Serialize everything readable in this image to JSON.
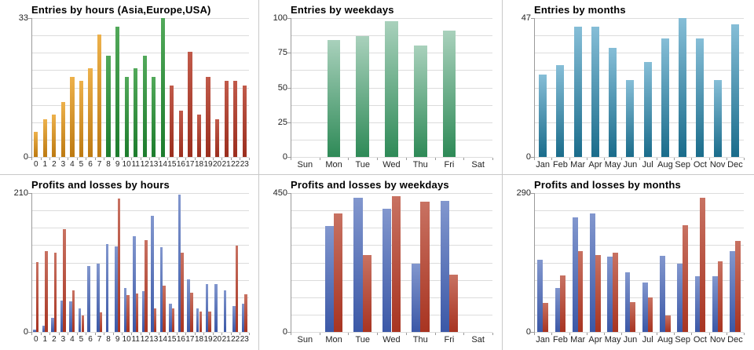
{
  "page": {
    "background": "#ffffff",
    "panel_border_color": "#c8c8c8",
    "grid_color": "#dcdcdc",
    "axis_color": "#9a9a9a",
    "label_color": "#222222",
    "title_color": "#000000"
  },
  "palettes": {
    "orange": [
      "#edb14b",
      "#bd7a12"
    ],
    "green": [
      "#52a95a",
      "#1d7c2d"
    ],
    "rust": [
      "#c15a4a",
      "#9b2e1e"
    ],
    "mint": [
      "#a9d1bc",
      "#2e8a57"
    ],
    "teal": [
      "#86bed7",
      "#1a6c8b"
    ],
    "blue": [
      "#8297ce",
      "#3b58a7"
    ],
    "red": [
      "#c87262",
      "#a83421"
    ]
  },
  "chart_data": [
    {
      "id": "entries-by-hours",
      "type": "bar",
      "title": "Entries by hours (Asia,Europe,USA)",
      "ylim": [
        0,
        33
      ],
      "grid_divisions": 8,
      "legend_position": "none",
      "y_ticks": [
        {
          "value": 33,
          "label": "33"
        },
        {
          "value": 0,
          "label": "0"
        }
      ],
      "categories": [
        "0",
        "1",
        "2",
        "3",
        "4",
        "5",
        "6",
        "7",
        "8",
        "9",
        "10",
        "11",
        "12",
        "13",
        "14",
        "15",
        "16",
        "17",
        "18",
        "19",
        "20",
        "21",
        "22",
        "23"
      ],
      "series": [
        {
          "name": "entries",
          "values": [
            6,
            9,
            10,
            13,
            19,
            18,
            21,
            29,
            24,
            31,
            19,
            21,
            24,
            19,
            33,
            17,
            11,
            25,
            10,
            19,
            9,
            18,
            18,
            17
          ]
        }
      ],
      "bar_palettes": [
        "orange",
        "orange",
        "orange",
        "orange",
        "orange",
        "orange",
        "orange",
        "orange",
        "green",
        "green",
        "green",
        "green",
        "green",
        "green",
        "green",
        "rust",
        "rust",
        "rust",
        "rust",
        "rust",
        "rust",
        "rust",
        "rust",
        "rust"
      ],
      "region_groups": [
        {
          "label": "Asia",
          "palette": "orange",
          "hours": "0-7"
        },
        {
          "label": "Europe",
          "palette": "green",
          "hours": "8-14"
        },
        {
          "label": "USA",
          "palette": "rust",
          "hours": "15-23"
        }
      ]
    },
    {
      "id": "entries-by-weekdays",
      "type": "bar",
      "title": "Entries by weekdays",
      "ylim": [
        0,
        100
      ],
      "grid_divisions": 8,
      "legend_position": "none",
      "y_ticks": [
        {
          "value": 100,
          "label": "100"
        },
        {
          "value": 75,
          "label": "75"
        },
        {
          "value": 50,
          "label": "50"
        },
        {
          "value": 25,
          "label": "25"
        },
        {
          "value": 0,
          "label": "0"
        }
      ],
      "categories": [
        "Sun",
        "Mon",
        "Tue",
        "Wed",
        "Thu",
        "Fri",
        "Sat"
      ],
      "series": [
        {
          "name": "entries",
          "palette": "mint",
          "values": [
            0,
            84,
            87,
            98,
            80,
            91,
            0
          ]
        }
      ]
    },
    {
      "id": "entries-by-months",
      "type": "bar",
      "title": "Entries by months",
      "ylim": [
        0,
        47
      ],
      "grid_divisions": 8,
      "legend_position": "none",
      "y_ticks": [
        {
          "value": 47,
          "label": "47"
        },
        {
          "value": 0,
          "label": "0"
        }
      ],
      "categories": [
        "Jan",
        "Feb",
        "Mar",
        "Apr",
        "May",
        "Jun",
        "Jul",
        "Aug",
        "Sep",
        "Oct",
        "Nov",
        "Dec"
      ],
      "series": [
        {
          "name": "entries",
          "palette": "teal",
          "values": [
            28,
            31,
            44,
            44,
            37,
            26,
            32,
            40,
            47,
            40,
            26,
            45
          ]
        }
      ]
    },
    {
      "id": "profits-losses-by-hours",
      "type": "bar",
      "title": "Profits and losses by hours",
      "ylim": [
        0,
        210
      ],
      "grid_divisions": 8,
      "legend_position": "none",
      "y_ticks": [
        {
          "value": 210,
          "label": "210"
        },
        {
          "value": 0,
          "label": "0"
        }
      ],
      "categories": [
        "0",
        "1",
        "2",
        "3",
        "4",
        "5",
        "6",
        "7",
        "8",
        "9",
        "10",
        "11",
        "12",
        "13",
        "14",
        "15",
        "16",
        "17",
        "18",
        "19",
        "20",
        "21",
        "22",
        "23"
      ],
      "series": [
        {
          "name": "profits",
          "palette": "blue",
          "values": [
            4,
            10,
            21,
            47,
            46,
            36,
            100,
            103,
            133,
            129,
            66,
            145,
            62,
            176,
            128,
            43,
            208,
            79,
            36,
            72,
            72,
            63,
            39,
            43
          ]
        },
        {
          "name": "losses",
          "palette": "red",
          "values": [
            106,
            122,
            120,
            155,
            63,
            25,
            0,
            30,
            0,
            202,
            56,
            58,
            139,
            35,
            70,
            35,
            120,
            59,
            31,
            31,
            0,
            0,
            131,
            57
          ]
        }
      ]
    },
    {
      "id": "profits-losses-by-weekdays",
      "type": "bar",
      "title": "Profits and losses by weekdays",
      "ylim": [
        0,
        450
      ],
      "grid_divisions": 8,
      "legend_position": "none",
      "y_ticks": [
        {
          "value": 450,
          "label": "450"
        },
        {
          "value": 0,
          "label": "0"
        }
      ],
      "categories": [
        "Sun",
        "Mon",
        "Tue",
        "Wed",
        "Thu",
        "Fri",
        "Sat"
      ],
      "series": [
        {
          "name": "profits",
          "palette": "blue",
          "values": [
            0,
            343,
            434,
            399,
            221,
            424,
            0
          ]
        },
        {
          "name": "losses",
          "palette": "red",
          "values": [
            0,
            383,
            250,
            440,
            422,
            186,
            0
          ]
        }
      ]
    },
    {
      "id": "profits-losses-by-months",
      "type": "bar",
      "title": "Profits and losses by months",
      "ylim": [
        0,
        290
      ],
      "grid_divisions": 8,
      "legend_position": "none",
      "y_ticks": [
        {
          "value": 290,
          "label": "290"
        },
        {
          "value": 0,
          "label": "0"
        }
      ],
      "categories": [
        "Jan",
        "Feb",
        "Mar",
        "Apr",
        "May",
        "Jun",
        "Jul",
        "Aug",
        "Sep",
        "Oct",
        "Nov",
        "Dec"
      ],
      "series": [
        {
          "name": "profits",
          "palette": "blue",
          "values": [
            150,
            91,
            239,
            248,
            157,
            125,
            103,
            159,
            143,
            117,
            116,
            169
          ]
        },
        {
          "name": "losses",
          "palette": "red",
          "values": [
            60,
            118,
            168,
            161,
            165,
            63,
            72,
            34,
            223,
            280,
            147,
            190
          ]
        }
      ]
    }
  ]
}
